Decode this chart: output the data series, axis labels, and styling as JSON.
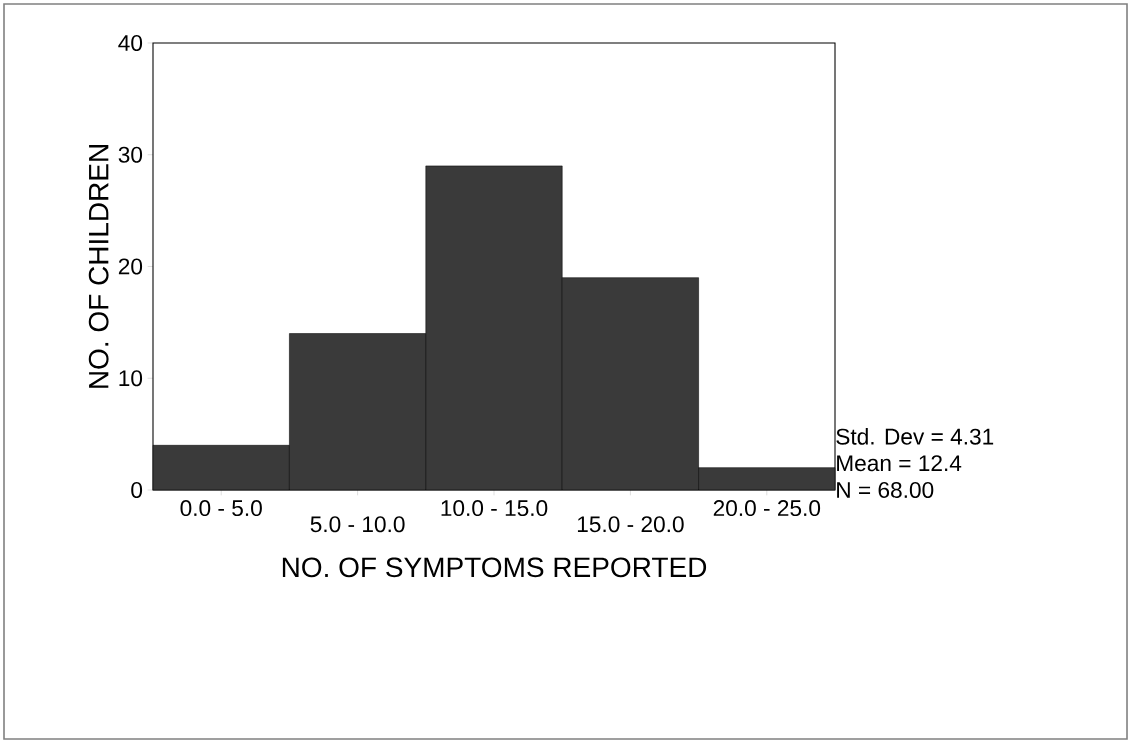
{
  "chart_data": {
    "type": "bar",
    "xlabel": "NO. OF SYMPTOMS REPORTED",
    "ylabel": "NO. OF CHILDREN",
    "categories": [
      "0.0 - 5.0",
      "5.0 - 10.0",
      "10.0 - 15.0",
      "15.0 - 20.0",
      "20.0 - 25.0"
    ],
    "values": [
      4,
      14,
      29,
      19,
      2
    ],
    "color": "#3a3a3a",
    "ylim": [
      0,
      40
    ],
    "yticks": [
      0,
      10,
      20,
      30,
      40
    ],
    "annotations": [
      "Std. Dev = 4.31",
      "Mean = 12.4",
      "N = 68.00"
    ]
  }
}
